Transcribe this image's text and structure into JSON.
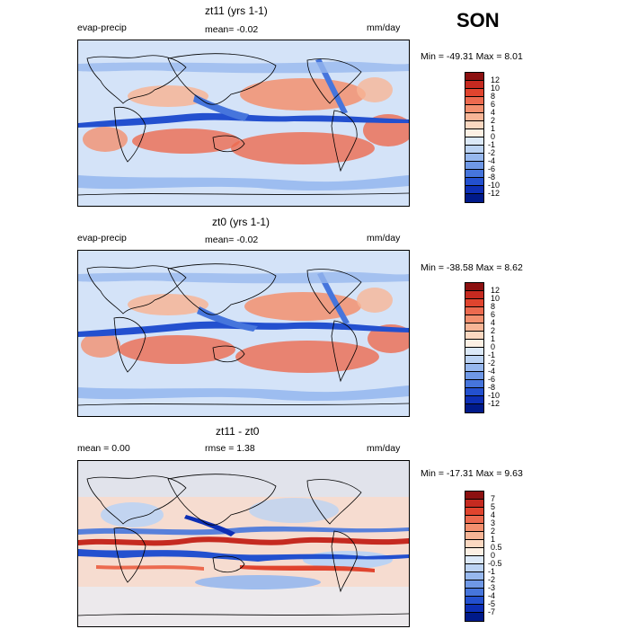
{
  "season": "SON",
  "panels": [
    {
      "title": "zt11 (yrs 1-1)",
      "left_label": "evap-precip",
      "mid_label": "mean=   -0.02",
      "unit": "mm/day",
      "min_max": "Min = -49.31  Max =    8.01",
      "levels": [
        "12",
        "10",
        "8",
        "6",
        "4",
        "2",
        "1",
        "0",
        "-1",
        "-2",
        "-4",
        "-6",
        "-8",
        "-10",
        "-12"
      ],
      "colors": [
        "#8c1010",
        "#c52a20",
        "#e0442e",
        "#ec6a4f",
        "#f3906f",
        "#f7b596",
        "#fbd8c1",
        "#fdf0e4",
        "#dce9f8",
        "#bcd3f3",
        "#97b8ee",
        "#6f98e6",
        "#4675dc",
        "#2350cf",
        "#0d2fb5",
        "#001a8a"
      ]
    },
    {
      "title": "zt0 (yrs 1-1)",
      "left_label": "evap-precip",
      "mid_label": "mean=   -0.02",
      "unit": "mm/day",
      "min_max": "Min = -38.58  Max =    8.62",
      "levels": [
        "12",
        "10",
        "8",
        "6",
        "4",
        "2",
        "1",
        "0",
        "-1",
        "-2",
        "-4",
        "-6",
        "-8",
        "-10",
        "-12"
      ],
      "colors": [
        "#8c1010",
        "#c52a20",
        "#e0442e",
        "#ec6a4f",
        "#f3906f",
        "#f7b596",
        "#fbd8c1",
        "#fdf0e4",
        "#dce9f8",
        "#bcd3f3",
        "#97b8ee",
        "#6f98e6",
        "#4675dc",
        "#2350cf",
        "#0d2fb5",
        "#001a8a"
      ]
    },
    {
      "title": "zt11 - zt0",
      "left_label": "mean =    0.00",
      "mid_label": "rmse =    1.38",
      "unit": "mm/day",
      "min_max": "Min = -17.31  Max =    9.63",
      "levels": [
        "7",
        "5",
        "4",
        "3",
        "2",
        "1",
        "0.5",
        "0",
        "-0.5",
        "-1",
        "-2",
        "-3",
        "-4",
        "-5",
        "-7"
      ],
      "colors": [
        "#8c1010",
        "#c52a20",
        "#e0442e",
        "#ec6a4f",
        "#f3906f",
        "#f7b596",
        "#fbd8c1",
        "#fdf0e4",
        "#dce9f8",
        "#bcd3f3",
        "#97b8ee",
        "#6f98e6",
        "#4675dc",
        "#2350cf",
        "#0d2fb5",
        "#001a8a"
      ]
    }
  ]
}
